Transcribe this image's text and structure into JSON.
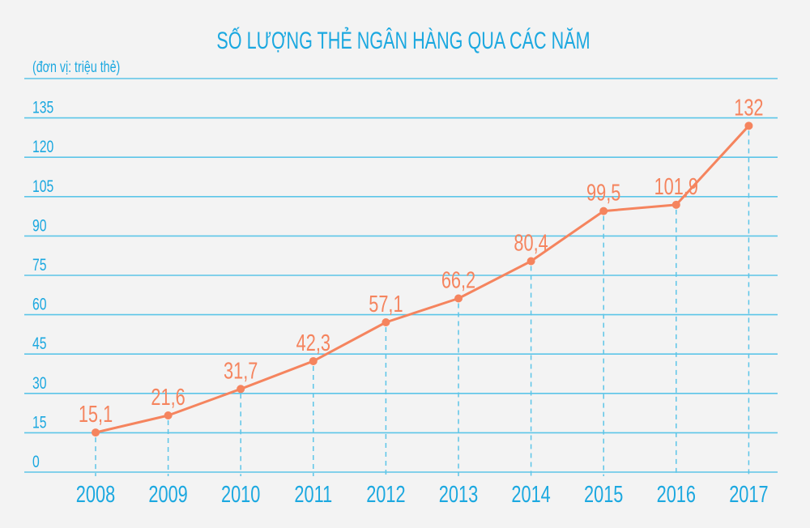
{
  "chart_data": {
    "type": "line",
    "title": "SỐ LƯỢNG THẺ NGÂN HÀNG QUA CÁC NĂM",
    "unit_label": "(đơn vị: triệu thẻ)",
    "categories": [
      "2008",
      "2009",
      "2010",
      "2011",
      "2012",
      "2013",
      "2014",
      "2015",
      "2016",
      "2017"
    ],
    "values": [
      15.1,
      21.6,
      31.7,
      42.3,
      57.1,
      66.2,
      80.4,
      99.5,
      101.9,
      132
    ],
    "data_labels": [
      "15,1",
      "21,6",
      "31,7",
      "42,3",
      "57,1",
      "66,2",
      "80,4",
      "99,5",
      "101,9",
      "132"
    ],
    "y_ticks": [
      0,
      15,
      30,
      45,
      60,
      75,
      90,
      105,
      120,
      135
    ],
    "ylim": [
      0,
      150
    ],
    "grid": true,
    "colors": {
      "text": "#1ba8e0",
      "grid": "#5cc5e8",
      "line": "#f5845e",
      "background": "#f3f3f3"
    }
  }
}
